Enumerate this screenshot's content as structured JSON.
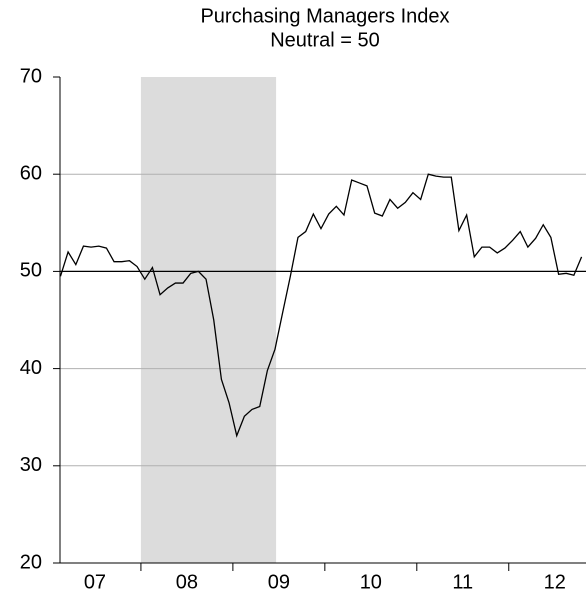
{
  "chart_data": {
    "type": "line",
    "title": "Purchasing Managers Index",
    "subtitle": "Neutral = 50",
    "x": [
      2007.125,
      2007.208,
      2007.292,
      2007.375,
      2007.458,
      2007.542,
      2007.625,
      2007.708,
      2007.792,
      2007.875,
      2007.958,
      2008.042,
      2008.125,
      2008.208,
      2008.292,
      2008.375,
      2008.458,
      2008.542,
      2008.625,
      2008.708,
      2008.792,
      2008.875,
      2008.958,
      2009.042,
      2009.125,
      2009.208,
      2009.292,
      2009.375,
      2009.458,
      2009.542,
      2009.625,
      2009.708,
      2009.792,
      2009.875,
      2009.958,
      2010.042,
      2010.125,
      2010.208,
      2010.292,
      2010.375,
      2010.458,
      2010.542,
      2010.625,
      2010.708,
      2010.792,
      2010.875,
      2010.958,
      2011.042,
      2011.125,
      2011.208,
      2011.292,
      2011.375,
      2011.458,
      2011.542,
      2011.625,
      2011.708,
      2011.792,
      2011.875,
      2011.958,
      2012.042,
      2012.125,
      2012.208,
      2012.292,
      2012.375,
      2012.458,
      2012.542,
      2012.625,
      2012.708,
      2012.792
    ],
    "series": [
      {
        "color": "#000000",
        "values": [
          49.5,
          52,
          50.7,
          52.6,
          52.5,
          52.6,
          52.4,
          51,
          51,
          51.1,
          50.5,
          49.2,
          50.4,
          47.6,
          48.3,
          48.8,
          48.8,
          49.8,
          50,
          49.2,
          45,
          38.9,
          36.5,
          33.1,
          35.1,
          35.8,
          36.1,
          39.8,
          42,
          45.8,
          49.5,
          53.5,
          54.1,
          55.9,
          54.4,
          55.9,
          56.7,
          55.8,
          59.4,
          59.1,
          58.8,
          56,
          55.7,
          57.4,
          56.5,
          57.1,
          58.1,
          57.4,
          60,
          59.8,
          59.7,
          59.7,
          54.2,
          55.8,
          51.5,
          52.5,
          52.5,
          51.9,
          52.4,
          53.2,
          54.1,
          52.5,
          53.4,
          54.8,
          53.5,
          49.7,
          49.8,
          49.6,
          51.5
        ]
      }
    ],
    "xlim": [
      2007.12,
      2012.84
    ],
    "xticks": [
      {
        "value": 2007.5,
        "label": "07"
      },
      {
        "value": 2008.5,
        "label": "08"
      },
      {
        "value": 2009.5,
        "label": "09"
      },
      {
        "value": 2010.5,
        "label": "10"
      },
      {
        "value": 2011.5,
        "label": "11"
      },
      {
        "value": 2012.5,
        "label": "12"
      }
    ],
    "ylim": [
      20,
      70
    ],
    "yticks": [
      20,
      30,
      40,
      50,
      60,
      70
    ],
    "grid": true,
    "reference_line": 50,
    "shaded_span": [
      2008.0,
      2009.47
    ],
    "shade_color": "#dcdcdc"
  }
}
